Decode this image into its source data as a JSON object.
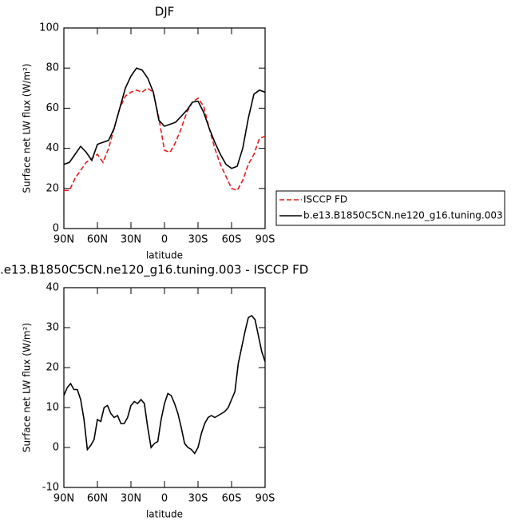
{
  "chart_data": [
    {
      "type": "line",
      "title": "DJF",
      "xlabel": "latitude",
      "ylabel": "Surface net LW flux (W/m²)",
      "xlim": [
        90,
        -90
      ],
      "ylim": [
        0,
        100
      ],
      "xticks": [
        {
          "value": 90,
          "label": "90N"
        },
        {
          "value": 60,
          "label": "60N"
        },
        {
          "value": 30,
          "label": "30N"
        },
        0,
        {
          "value": -30,
          "label": "30S"
        },
        {
          "value": -60,
          "label": "60S"
        },
        {
          "value": -90,
          "label": "90S"
        }
      ],
      "yticks": [
        0,
        20,
        40,
        60,
        80,
        100
      ],
      "legend": "outside-right",
      "x": [
        90,
        85,
        80,
        75,
        70,
        65,
        60,
        55,
        50,
        45,
        40,
        35,
        30,
        25,
        20,
        15,
        10,
        5,
        0,
        -5,
        -10,
        -15,
        -20,
        -25,
        -30,
        -35,
        -40,
        -45,
        -50,
        -55,
        -60,
        -65,
        -70,
        -75,
        -80,
        -85,
        -90
      ],
      "series": [
        {
          "name": "ISCCP FD",
          "color": "#e41a1c",
          "linestyle": "dashed",
          "values": [
            19,
            19,
            25,
            29,
            33,
            35,
            37,
            33,
            40,
            50,
            60,
            66,
            68,
            69,
            68,
            70,
            68,
            55,
            39,
            38,
            43,
            50,
            58,
            63,
            65,
            61,
            50,
            40,
            32,
            26,
            20,
            19,
            24,
            32,
            37,
            45,
            46
          ]
        },
        {
          "name": "b.e13.B1850C5CN.ne120_g16.tuning.003",
          "color": "#000000",
          "linestyle": "solid",
          "values": [
            32,
            33,
            37,
            41,
            38,
            34,
            42,
            43,
            44,
            50,
            60,
            70,
            76,
            80,
            79,
            75,
            68,
            54,
            51,
            52,
            53,
            56,
            59,
            63,
            63.5,
            58,
            50,
            43,
            37,
            32,
            30,
            31,
            40,
            55,
            67,
            69,
            68
          ]
        }
      ]
    },
    {
      "type": "line",
      "title": ".e13.B1850C5CN.ne120_g16.tuning.003 - ISCCP FD",
      "xlabel": "latitude",
      "ylabel": "Surface net LW flux (W/m²)",
      "xlim": [
        90,
        -90
      ],
      "ylim": [
        -10,
        40
      ],
      "xticks": [
        {
          "value": 90,
          "label": "90N"
        },
        {
          "value": 60,
          "label": "60N"
        },
        {
          "value": 30,
          "label": "30N"
        },
        0,
        {
          "value": -30,
          "label": "30S"
        },
        {
          "value": -60,
          "label": "60S"
        },
        {
          "value": -90,
          "label": "90S"
        }
      ],
      "yticks": [
        -10,
        0,
        10,
        20,
        30,
        40
      ],
      "x": [
        90,
        87,
        84,
        81,
        78,
        75,
        72,
        69,
        66,
        63,
        60,
        57,
        54,
        51,
        48,
        45,
        42,
        39,
        36,
        33,
        30,
        27,
        24,
        21,
        18,
        15,
        12,
        9,
        6,
        3,
        0,
        -3,
        -6,
        -9,
        -12,
        -15,
        -18,
        -21,
        -24,
        -27,
        -30,
        -33,
        -36,
        -39,
        -42,
        -45,
        -48,
        -51,
        -54,
        -57,
        -60,
        -63,
        -66,
        -69,
        -72,
        -75,
        -78,
        -81,
        -84,
        -87,
        -90
      ],
      "series": [
        {
          "color": "#000000",
          "linestyle": "solid",
          "values": [
            13,
            15,
            16,
            14.5,
            14.5,
            12,
            7,
            -0.5,
            0.5,
            2,
            7,
            6.5,
            10,
            10.5,
            8.5,
            7.5,
            8,
            6,
            6,
            7.5,
            10.5,
            11.5,
            11,
            12,
            11,
            5,
            0,
            1,
            1.5,
            7,
            11,
            13.5,
            13,
            11,
            8.5,
            5,
            1,
            0,
            -0.5,
            -1.5,
            0,
            3.5,
            6,
            7.5,
            8,
            7.5,
            8,
            8.5,
            9,
            10,
            12,
            14,
            21,
            25,
            29,
            32.5,
            33,
            32,
            28,
            24,
            21.5
          ]
        }
      ]
    }
  ]
}
